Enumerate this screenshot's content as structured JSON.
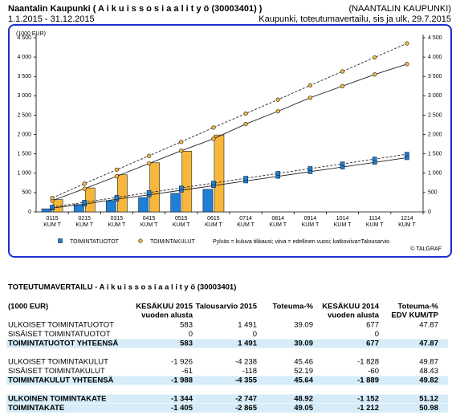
{
  "header": {
    "title": "Naantalin Kaupunki ( A i k u i s s o s i a a l i t y ö (30003401) )",
    "period": "1.1.2015 - 31.12.2015",
    "organisation": "(NAANTALIN KAUPUNKI)",
    "report": "Kaupunki, toteutumavertailu, sis ja ulk, 29.7.2015"
  },
  "chart_data": {
    "type": "bar",
    "y_label": "(1000 EUR)",
    "categories": [
      "0115",
      "0215",
      "0315",
      "0415",
      "0515",
      "0615",
      "0714",
      "0814",
      "0914",
      "1014",
      "1114",
      "1214"
    ],
    "category_sublabel": "KUM T",
    "ylim": [
      0,
      4500
    ],
    "yticks": [
      0,
      500,
      {
        "value": 1000,
        "label": "1 000"
      },
      {
        "value": 1500,
        "label": "1 500"
      },
      {
        "value": 2000,
        "label": "2 000"
      },
      {
        "value": 2500,
        "label": "2 500"
      },
      {
        "value": 3000,
        "label": "3 000"
      },
      {
        "value": 3500,
        "label": "3 500"
      },
      {
        "value": 4000,
        "label": "4 000"
      },
      {
        "value": 4500,
        "label": "4 500"
      }
    ],
    "series": [
      {
        "name": "TOIMINTATUOTOT",
        "kind": "bar",
        "marker": "square",
        "color": "#1e7fd6",
        "values": [
          80,
          190,
          290,
          370,
          480,
          583,
          null,
          null,
          null,
          null,
          null,
          null
        ]
      },
      {
        "name": "TOIMINTAKULUT",
        "kind": "bar",
        "marker": "circle",
        "color": "#f6b73c",
        "values": [
          320,
          620,
          960,
          1270,
          1570,
          1988,
          null,
          null,
          null,
          null,
          null,
          null
        ]
      },
      {
        "kind": "line",
        "style": "solid",
        "marker": "circle",
        "color": "#f6b73c",
        "values": [
          290,
          600,
          920,
          1250,
          1580,
          1889,
          2270,
          2600,
          2950,
          3250,
          3550,
          3820
        ]
      },
      {
        "kind": "line",
        "style": "dashed",
        "marker": "circle",
        "color": "#f6b73c",
        "values": [
          360,
          730,
          1090,
          1450,
          1810,
          2180,
          2540,
          2900,
          3270,
          3630,
          3990,
          4355
        ]
      },
      {
        "kind": "line",
        "style": "solid",
        "marker": "square",
        "color": "#1e7fd6",
        "values": [
          100,
          200,
          330,
          440,
          560,
          677,
          800,
          920,
          1040,
          1160,
          1280,
          1400
        ]
      },
      {
        "kind": "line",
        "style": "dashed",
        "marker": "square",
        "color": "#1e7fd6",
        "values": [
          125,
          250,
          375,
          500,
          620,
          745,
          870,
          995,
          1120,
          1240,
          1365,
          1491
        ]
      }
    ],
    "note": "Pylväs = kuluva tilikausi; viiva = edellinen vuosi; katkoviiva=Talousarvio",
    "credit": "© TALGRAF"
  },
  "table": {
    "title": "TOTEUTUMAVERTAILU - A i k u i s s o s i a a l i t y ö (30003401)",
    "unit": "(1000 EUR)",
    "columns": [
      [
        "KESÄKUU 2015",
        "vuoden alusta"
      ],
      [
        "Talousarvio 2015"
      ],
      [
        "Toteuma-%"
      ],
      [
        "KESÄKUU 2014",
        "vuoden alusta"
      ],
      [
        "Toteuma-%",
        "EDV KUM/TP"
      ]
    ],
    "groups": [
      [
        {
          "cells": [
            "ULKOISET TOIMINTATUOTOT",
            "583",
            "1 491",
            "39.09",
            "677",
            "47.87"
          ]
        },
        {
          "cells": [
            "SISÄISET TOIMINTATUOTOT",
            "0",
            "0",
            null,
            "0",
            null
          ]
        },
        {
          "cells": [
            "TOIMINTATUOTOT YHTEENSÄ",
            "583",
            "1 491",
            "39.09",
            "677",
            "47.87"
          ],
          "highlight": true
        }
      ],
      [
        {
          "cells": [
            "ULKOISET TOIMINTAKULUT",
            "-1 926",
            "-4 238",
            "45.46",
            "-1 828",
            "49.87"
          ]
        },
        {
          "cells": [
            "SISÄISET TOIMINTAKULUT",
            "-61",
            "-118",
            "52.19",
            "-60",
            "48.43"
          ]
        },
        {
          "cells": [
            "TOIMINTAKULUT YHTEENSÄ",
            "-1 988",
            "-4 355",
            "45.64",
            "-1 889",
            "49.82"
          ],
          "highlight": true
        }
      ],
      [
        {
          "cells": [
            "ULKOINEN TOIMINTAKATE",
            "-1 344",
            "-2 747",
            "48.92",
            "-1 152",
            "51.12"
          ],
          "highlight": true
        },
        {
          "cells": [
            "TOIMINTAKATE",
            "-1 405",
            "-2 865",
            "49.05",
            "-1 212",
            "50.98"
          ],
          "highlight": true
        }
      ]
    ]
  }
}
